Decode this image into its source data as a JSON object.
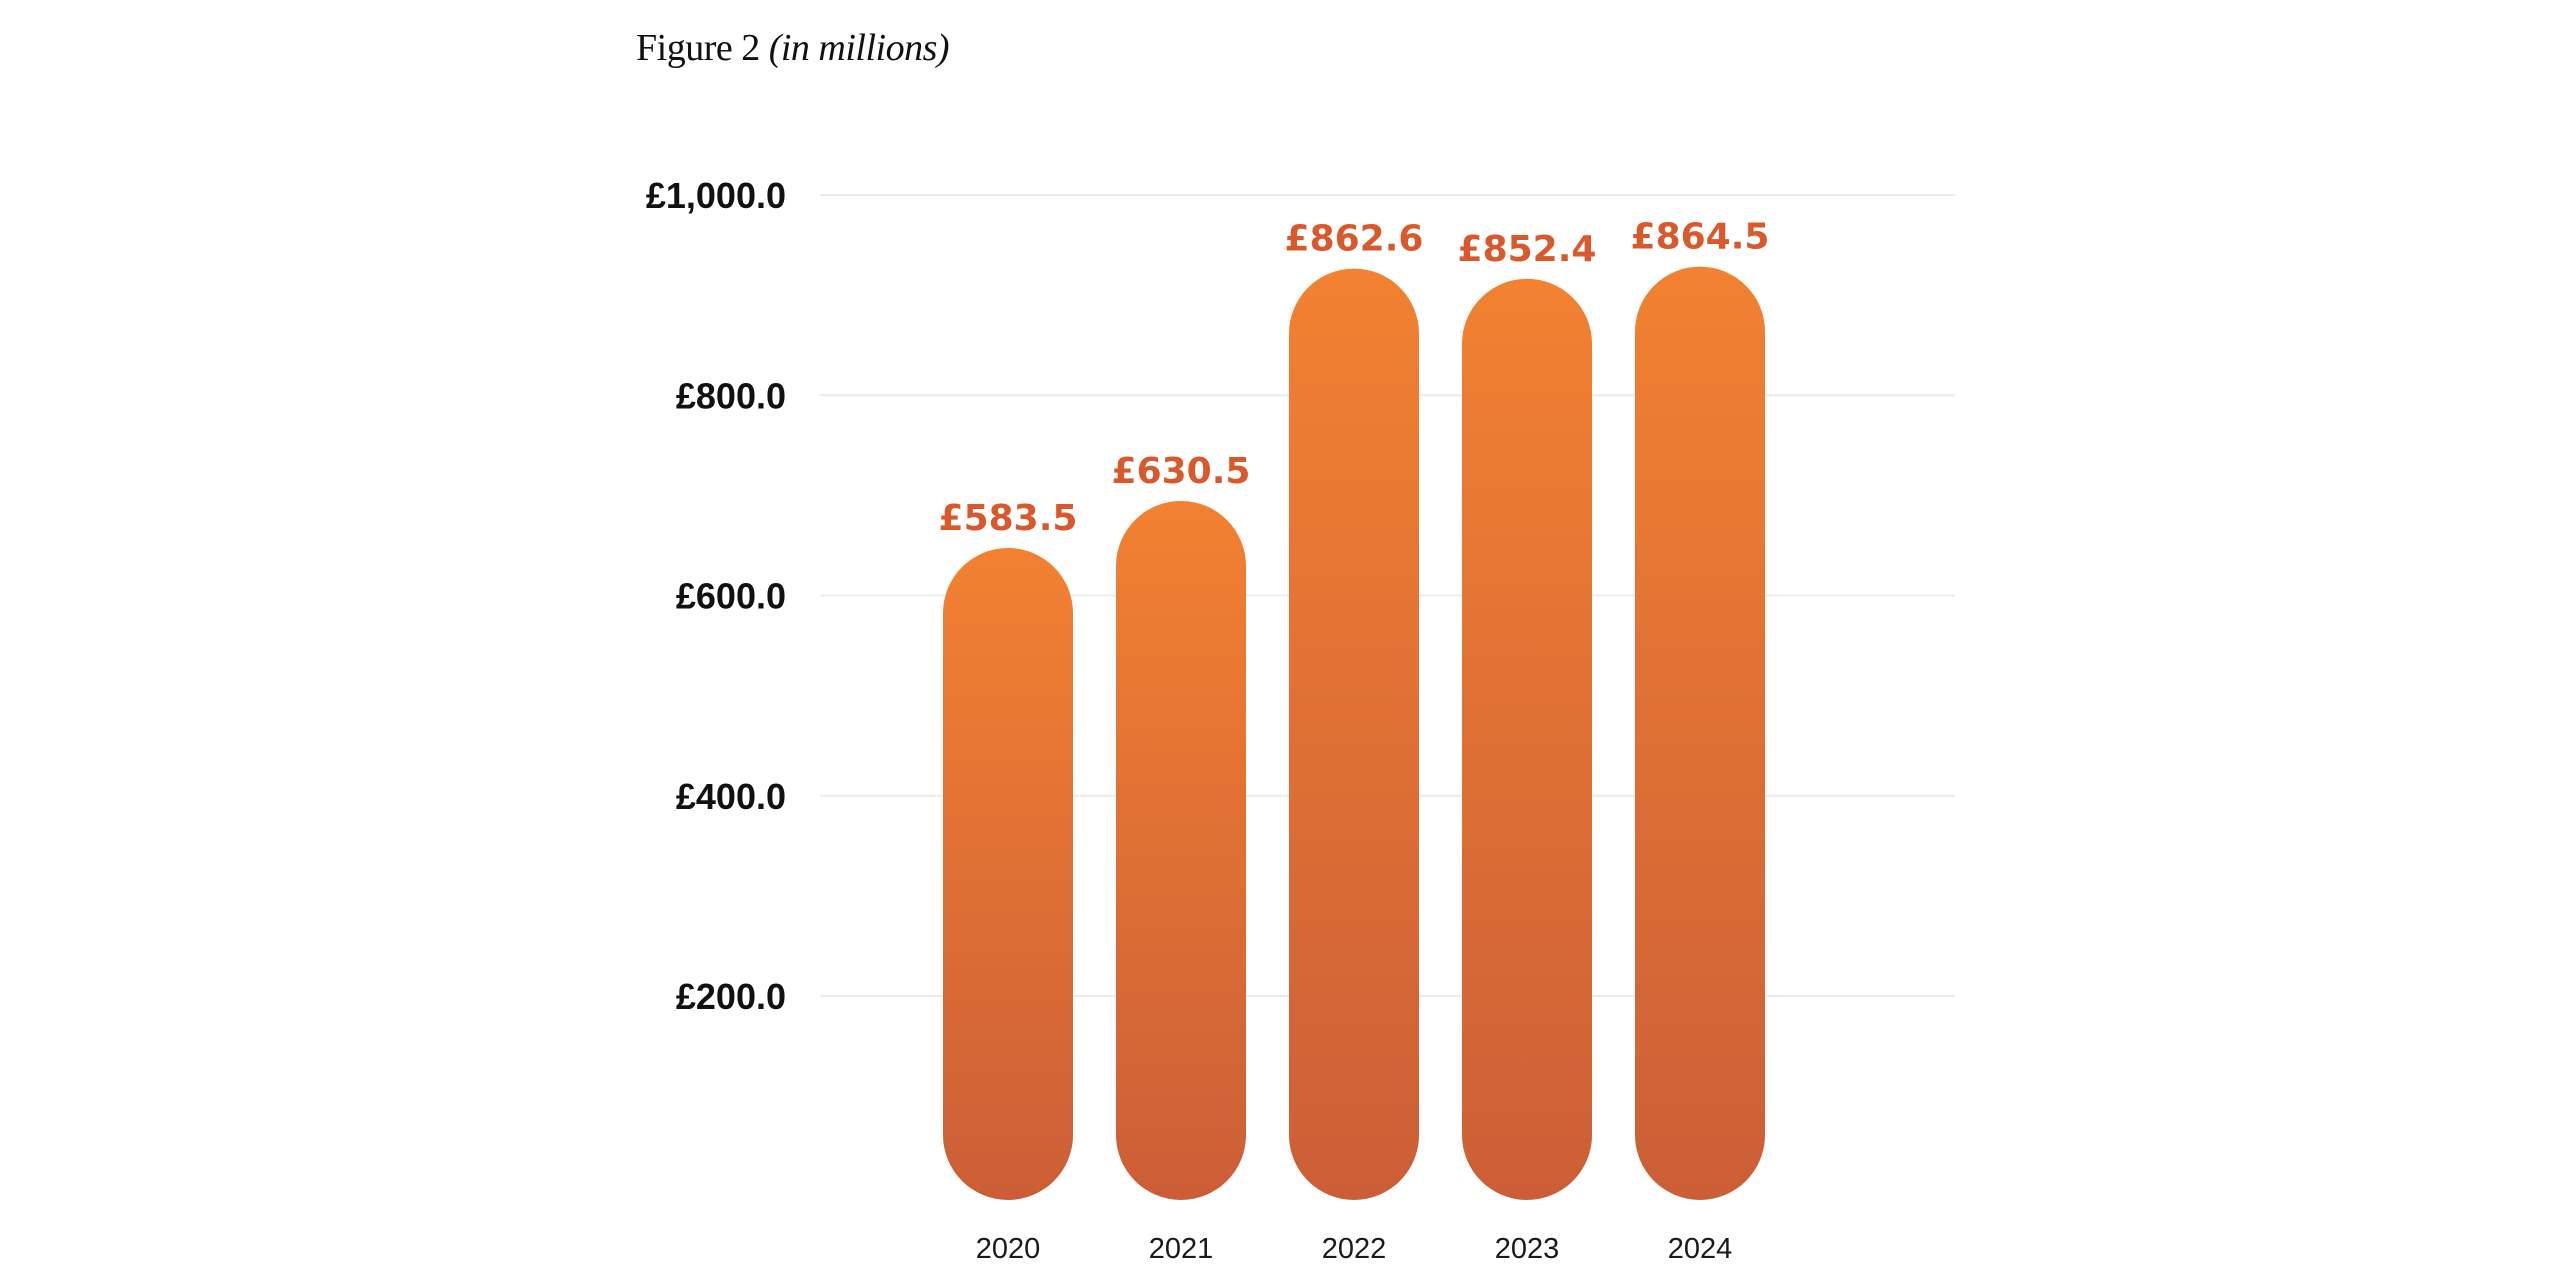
{
  "figure": {
    "title": "Figure 2",
    "unit": "(in millions)"
  },
  "colors": {
    "bar_top": "#f28131",
    "bar_bottom": "#cc5e37",
    "data_label": "#d9592c",
    "grid": "#ececec"
  },
  "chart_data": {
    "type": "bar",
    "categories": [
      "2020",
      "2021",
      "2022",
      "2023",
      "2024"
    ],
    "values": [
      583.5,
      630.5,
      862.6,
      852.4,
      864.5
    ],
    "data_labels": [
      "£583.5",
      "£630.5",
      "£862.6",
      "£852.4",
      "£864.5"
    ],
    "yticks": [
      200,
      400,
      600,
      800,
      1000
    ],
    "ytick_labels": [
      "£200.0",
      "£400.0",
      "£600.0",
      "£800.0",
      "£1,000.0"
    ],
    "ylim": [
      0,
      1000
    ],
    "grid": true,
    "legend": "none"
  }
}
